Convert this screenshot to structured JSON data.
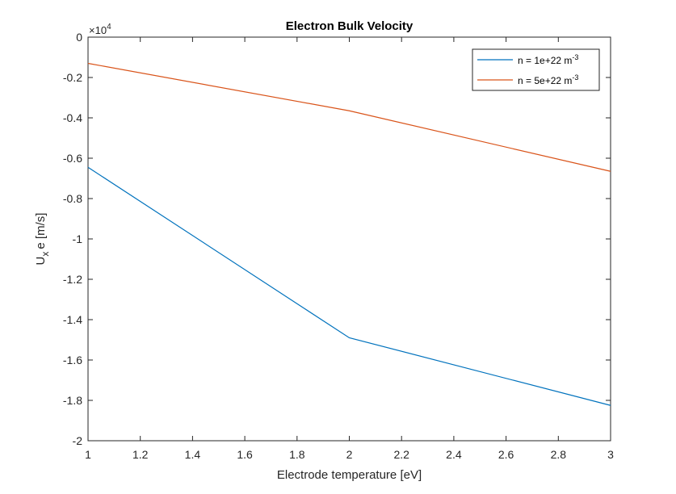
{
  "chart_data": {
    "type": "line",
    "title": "Electron Bulk Velocity",
    "xlabel": "Electrode temperature [eV]",
    "ylabel": {
      "main": "U",
      "sub": "x",
      "rest": "e [m/s]"
    },
    "y_multiplier": {
      "base": "×10",
      "exp": "4"
    },
    "xlim": [
      1,
      3
    ],
    "ylim": [
      -2,
      0
    ],
    "x_ticks": [
      1,
      1.2,
      1.4,
      1.6,
      1.8,
      2,
      2.2,
      2.4,
      2.6,
      2.8,
      3
    ],
    "x_tick_labels": [
      "1",
      "1.2",
      "1.4",
      "1.6",
      "1.8",
      "2",
      "2.2",
      "2.4",
      "2.6",
      "2.8",
      "3"
    ],
    "y_ticks": [
      0,
      -0.2,
      -0.4,
      -0.6,
      -0.8,
      -1,
      -1.2,
      -1.4,
      -1.6,
      -1.8,
      -2
    ],
    "y_tick_labels": [
      "0",
      "-0.2",
      "-0.4",
      "-0.6",
      "-0.8",
      "-1",
      "-1.2",
      "-1.4",
      "-1.6",
      "-1.8",
      "-2"
    ],
    "grid": false,
    "legend_position": "top-right",
    "series": [
      {
        "name_base": "n = 1e+22 m",
        "name_exp": "-3",
        "color": "#0072BD",
        "x": [
          1,
          2,
          3
        ],
        "y": [
          -0.645,
          -1.49,
          -1.825
        ]
      },
      {
        "name_base": "n = 5e+22 m",
        "name_exp": "-3",
        "color": "#D95319",
        "x": [
          1,
          2,
          3
        ],
        "y": [
          -0.13,
          -0.365,
          -0.665
        ]
      }
    ]
  }
}
